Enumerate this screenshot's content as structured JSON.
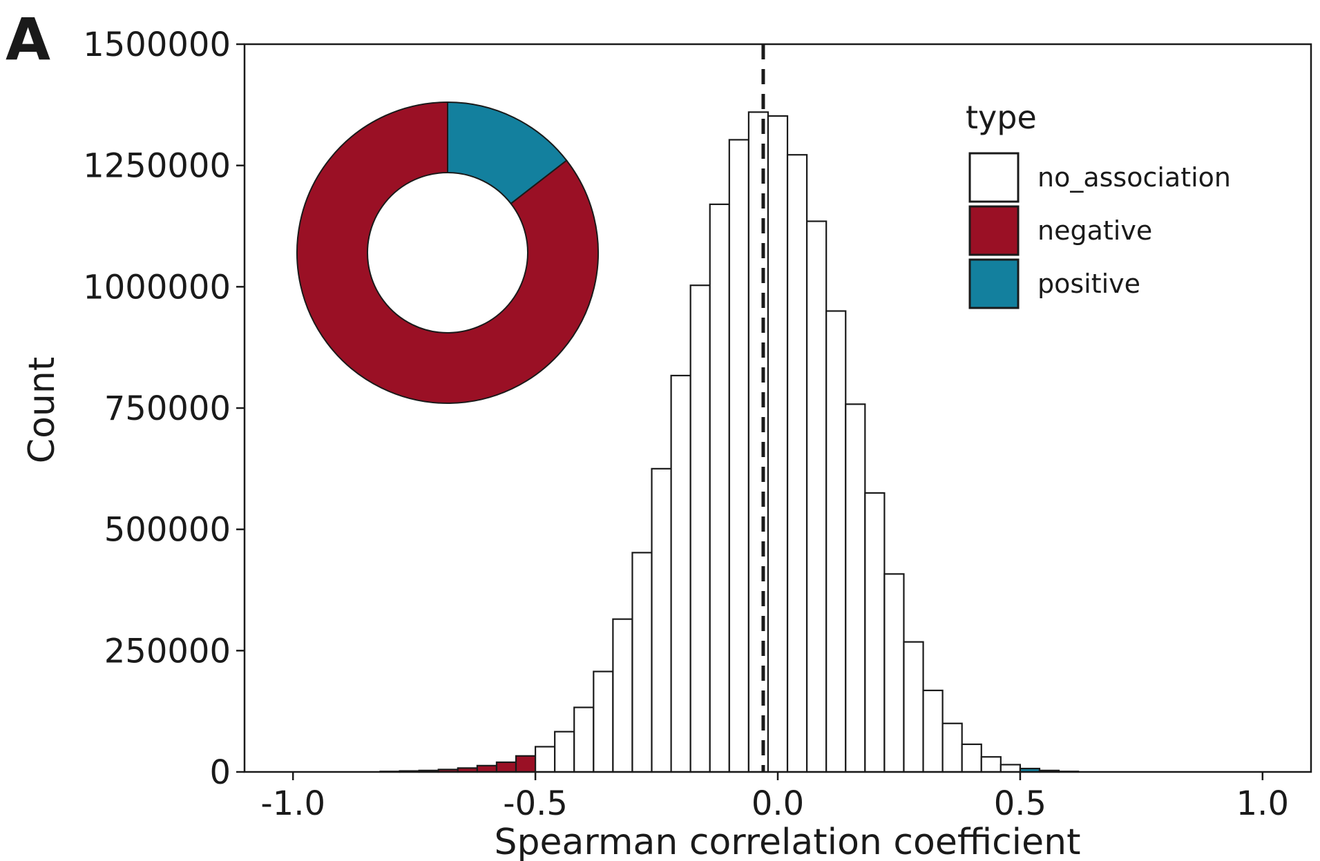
{
  "panel_label": "A",
  "chart_data": {
    "type": "bar",
    "subtype": "histogram",
    "xlabel": "Spearman correlation coefficient",
    "ylabel": "Count",
    "xlim": [
      -1.1,
      1.1
    ],
    "ylim": [
      0,
      1500000
    ],
    "xticks": [
      -1.0,
      -0.5,
      0.0,
      0.5,
      1.0
    ],
    "xtick_labels": [
      "-1.0",
      "-0.5",
      "0.0",
      "0.5",
      "1.0"
    ],
    "yticks": [
      0,
      250000,
      500000,
      750000,
      1000000,
      1250000,
      1500000
    ],
    "ytick_labels": [
      "0",
      "250000",
      "500000",
      "750000",
      "1000000",
      "1250000",
      "1500000"
    ],
    "bin_width": 0.04,
    "bin_start": -0.82,
    "bins": [
      {
        "value": 1000,
        "type": "negative"
      },
      {
        "value": 2000,
        "type": "negative"
      },
      {
        "value": 3000,
        "type": "negative"
      },
      {
        "value": 5000,
        "type": "negative"
      },
      {
        "value": 8000,
        "type": "negative"
      },
      {
        "value": 13000,
        "type": "negative"
      },
      {
        "value": 20000,
        "type": "negative"
      },
      {
        "value": 33000,
        "type": "negative"
      },
      {
        "value": 52000,
        "type": "no_association"
      },
      {
        "value": 83000,
        "type": "no_association"
      },
      {
        "value": 133000,
        "type": "no_association"
      },
      {
        "value": 207000,
        "type": "no_association"
      },
      {
        "value": 315000,
        "type": "no_association"
      },
      {
        "value": 452000,
        "type": "no_association"
      },
      {
        "value": 625000,
        "type": "no_association"
      },
      {
        "value": 817000,
        "type": "no_association"
      },
      {
        "value": 1003000,
        "type": "no_association"
      },
      {
        "value": 1170000,
        "type": "no_association"
      },
      {
        "value": 1303000,
        "type": "no_association"
      },
      {
        "value": 1360000,
        "type": "no_association"
      },
      {
        "value": 1352000,
        "type": "no_association"
      },
      {
        "value": 1272000,
        "type": "no_association"
      },
      {
        "value": 1135000,
        "type": "no_association"
      },
      {
        "value": 950000,
        "type": "no_association"
      },
      {
        "value": 758000,
        "type": "no_association"
      },
      {
        "value": 575000,
        "type": "no_association"
      },
      {
        "value": 408000,
        "type": "no_association"
      },
      {
        "value": 268000,
        "type": "no_association"
      },
      {
        "value": 168000,
        "type": "no_association"
      },
      {
        "value": 100000,
        "type": "no_association"
      },
      {
        "value": 57000,
        "type": "no_association"
      },
      {
        "value": 31000,
        "type": "no_association"
      },
      {
        "value": 15000,
        "type": "no_association"
      },
      {
        "value": 7000,
        "type": "positive"
      },
      {
        "value": 3000,
        "type": "positive"
      },
      {
        "value": 1000,
        "type": "positive"
      }
    ],
    "vline_x": -0.03,
    "vline_style": "dashed",
    "legend": {
      "title": "type",
      "placement": "top-right",
      "entries": [
        {
          "label": "no_association",
          "color": "#ffffff"
        },
        {
          "label": "negative",
          "color": "#9a1025"
        },
        {
          "label": "positive",
          "color": "#13809e"
        }
      ]
    },
    "inset_donut": {
      "slices": [
        {
          "type": "positive",
          "fraction": 0.145,
          "color": "#13809e"
        },
        {
          "type": "negative",
          "fraction": 0.855,
          "color": "#9a1025"
        }
      ]
    },
    "grid": false
  }
}
